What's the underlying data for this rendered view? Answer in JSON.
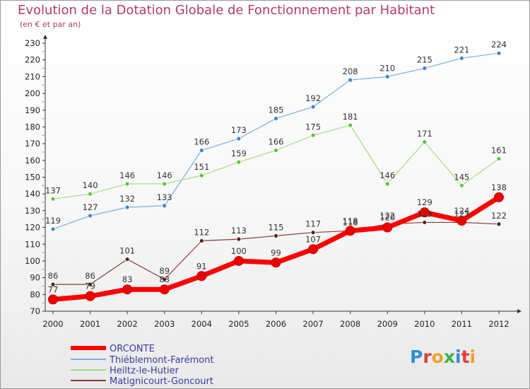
{
  "chart_data": {
    "type": "line",
    "title": "Evolution de la Dotation Globale de Fonctionnement par Habitant",
    "subtitle": "(en € et par an)",
    "x": [
      "2000",
      "2001",
      "2002",
      "2003",
      "2004",
      "2005",
      "2006",
      "2007",
      "2008",
      "2009",
      "2010",
      "2011",
      "2012"
    ],
    "ylim": [
      70,
      230
    ],
    "yticks": [
      70,
      80,
      90,
      100,
      110,
      120,
      130,
      140,
      150,
      160,
      170,
      180,
      190,
      200,
      210,
      220,
      230
    ],
    "grid": false,
    "legend_position": "bottom-left",
    "series": [
      {
        "name": "Thiéblemont-Farémont",
        "color": "#7aaede",
        "marker": "#3d86c6",
        "width": 1.2,
        "values": [
          119,
          127,
          132,
          133,
          166,
          173,
          185,
          192,
          208,
          210,
          215,
          221,
          224
        ]
      },
      {
        "name": "Heiltz-le-Hutier",
        "color": "#9fe07c",
        "marker": "#5cc43a",
        "width": 1.2,
        "values": [
          137,
          140,
          146,
          146,
          151,
          159,
          166,
          175,
          181,
          146,
          171,
          145,
          161
        ]
      },
      {
        "name": "Matignicourt-Goncourt",
        "color": "#8a3a3a",
        "marker": "#5e1e1e",
        "width": 1.2,
        "values": [
          86,
          86,
          101,
          89,
          112,
          113,
          115,
          117,
          118,
          122,
          123,
          123,
          122
        ]
      },
      {
        "name": "ORCONTE",
        "color": "#ff0000",
        "marker": "#ee0000",
        "width": 7,
        "values": [
          77,
          79,
          83,
          83,
          91,
          100,
          99,
          107,
          118,
          120,
          129,
          124,
          138
        ]
      }
    ],
    "legend_order": [
      "ORCONTE",
      "Thiéblemont-Farémont",
      "Heiltz-le-Hutier",
      "Matignicourt-Goncourt"
    ]
  },
  "logo": {
    "text": "Proxiti"
  }
}
